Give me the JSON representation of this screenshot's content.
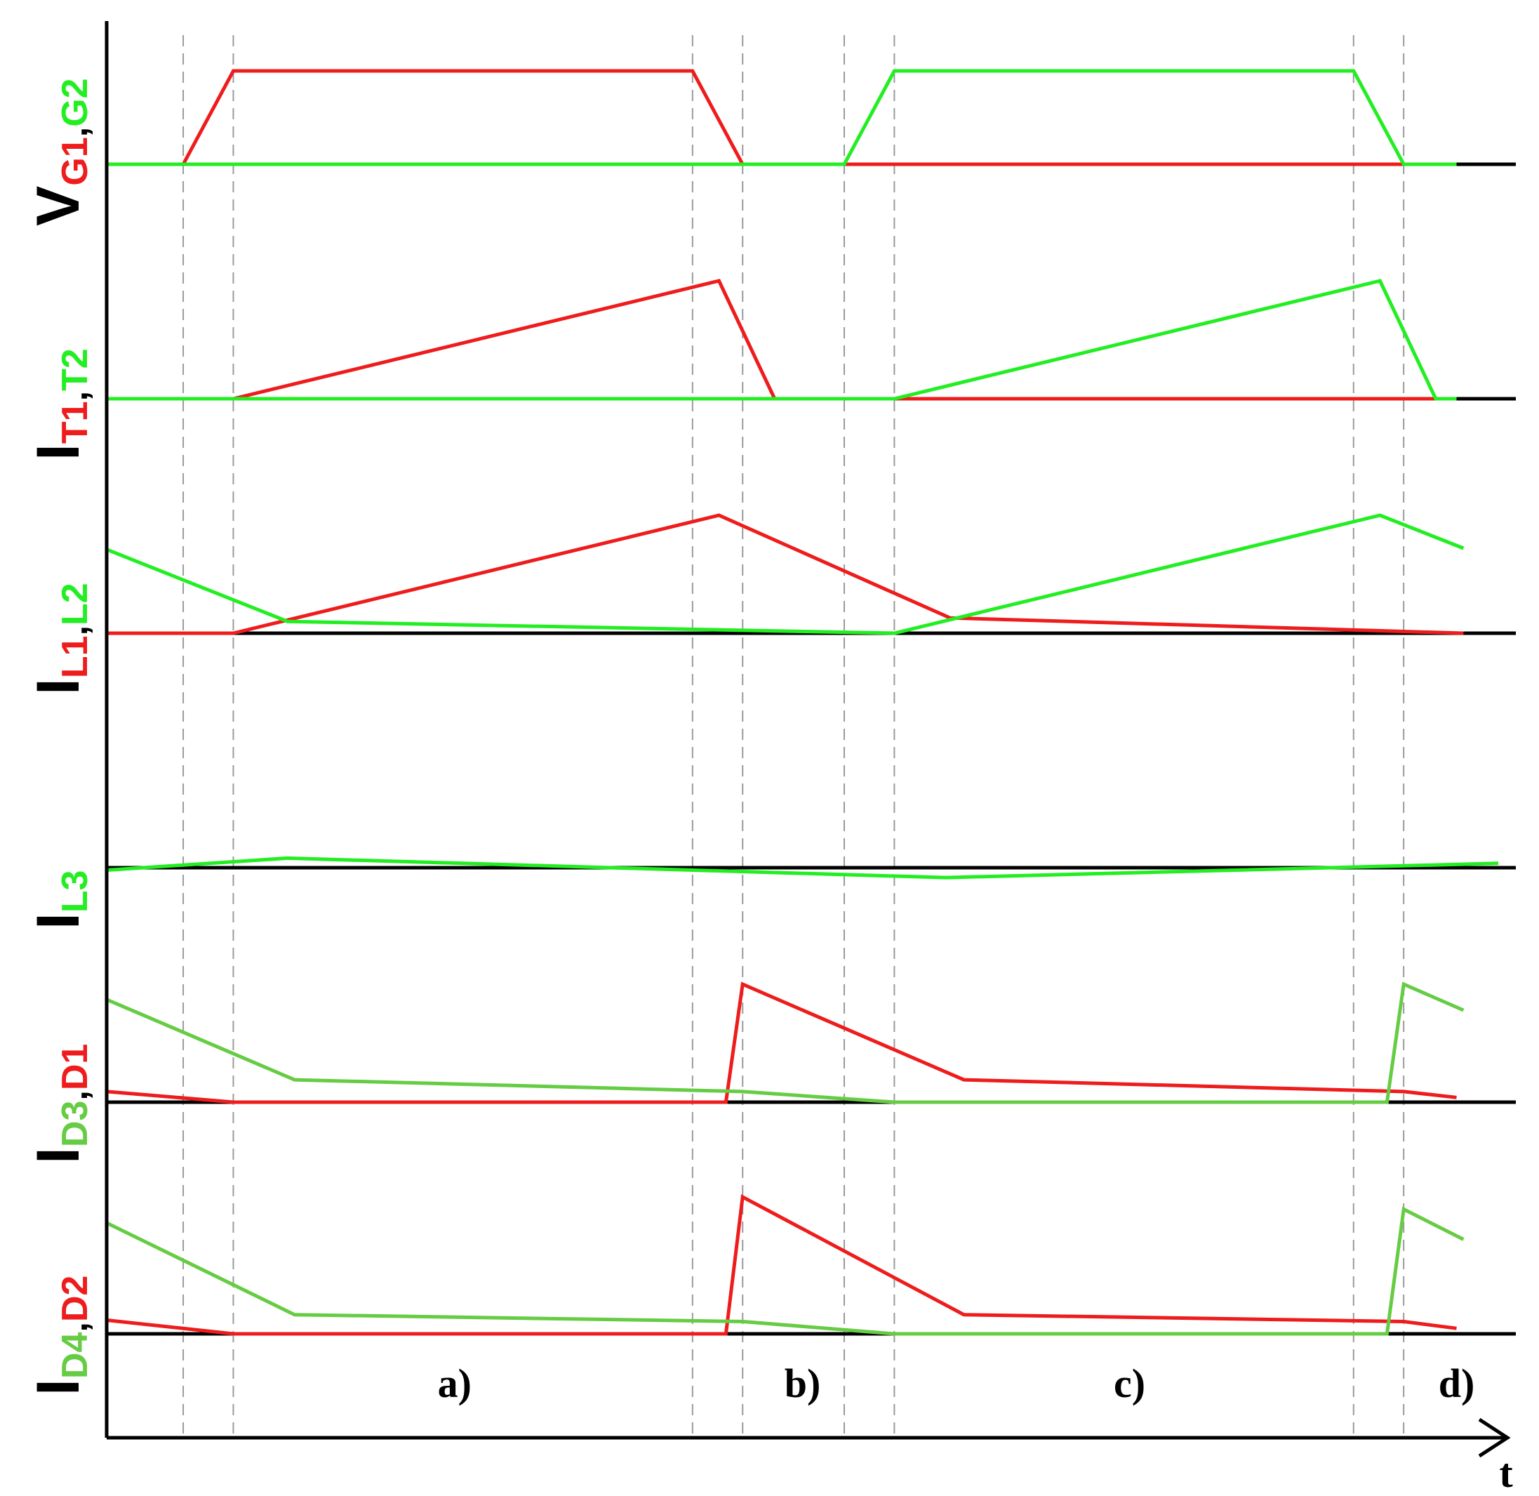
{
  "chart_data": {
    "type": "line",
    "x_unit": "t",
    "x_axis_label": "t",
    "xlim": [
      0,
      100
    ],
    "grid": false,
    "legend": "none",
    "phase_boundaries": [
      5.5,
      9.1,
      42.1,
      45.7,
      53.0,
      56.6,
      89.6,
      93.2
    ],
    "phases": [
      {
        "label": "a)",
        "x": 25.0
      },
      {
        "label": "b)",
        "x": 50.0
      },
      {
        "label": "c)",
        "x": 73.5
      },
      {
        "label": "d)",
        "x": 97.0
      }
    ],
    "colors": {
      "red": "#ee1c1c",
      "bright_green": "#22ee22",
      "diode_green": "#66cc44",
      "axis": "#000000",
      "guide": "#9a9a9a"
    },
    "rows": [
      {
        "id": "vg",
        "label_main": "V",
        "label_parts": [
          {
            "text": "G1",
            "color": "#ee1c1c"
          },
          {
            "text": ",",
            "color": "#000000"
          },
          {
            "text": "G2",
            "color": "#22ee22"
          }
        ],
        "series": [
          {
            "color": "#ee1c1c",
            "points": [
              [
                0,
                0
              ],
              [
                5.5,
                0
              ],
              [
                9.1,
                1
              ],
              [
                42.1,
                1
              ],
              [
                45.7,
                0
              ],
              [
                97.0,
                0
              ]
            ]
          },
          {
            "color": "#22ee22",
            "points": [
              [
                0,
                0
              ],
              [
                53.0,
                0
              ],
              [
                56.6,
                1
              ],
              [
                89.6,
                1
              ],
              [
                93.2,
                0
              ],
              [
                97.0,
                0
              ]
            ]
          }
        ]
      },
      {
        "id": "it",
        "label_main": "I",
        "label_parts": [
          {
            "text": "T1",
            "color": "#ee1c1c"
          },
          {
            "text": ",",
            "color": "#000000"
          },
          {
            "text": "T2",
            "color": "#22ee22"
          }
        ],
        "series": [
          {
            "color": "#ee1c1c",
            "points": [
              [
                0,
                0
              ],
              [
                9.1,
                0
              ],
              [
                44.0,
                1
              ],
              [
                48.0,
                0
              ],
              [
                95.5,
                0
              ]
            ]
          },
          {
            "color": "#22ee22",
            "points": [
              [
                0,
                0
              ],
              [
                56.6,
                0
              ],
              [
                91.5,
                1
              ],
              [
                95.5,
                0
              ],
              [
                97.0,
                0
              ]
            ]
          }
        ]
      },
      {
        "id": "il",
        "label_main": "I",
        "label_parts": [
          {
            "text": "L1",
            "color": "#ee1c1c"
          },
          {
            "text": ",",
            "color": "#000000"
          },
          {
            "text": "L2",
            "color": "#22ee22"
          }
        ],
        "series": [
          {
            "color": "#ee1c1c",
            "points": [
              [
                0,
                0
              ],
              [
                9.1,
                0
              ],
              [
                44.0,
                1
              ],
              [
                60.6,
                0.13
              ],
              [
                97.5,
                0
              ]
            ]
          },
          {
            "color": "#22ee22",
            "points": [
              [
                0,
                0.71
              ],
              [
                13.0,
                0.1
              ],
              [
                56.6,
                0
              ],
              [
                91.5,
                1
              ],
              [
                97.5,
                0.72
              ]
            ]
          }
        ]
      },
      {
        "id": "il3",
        "label_main": "I",
        "label_parts": [
          {
            "text": "L3",
            "color": "#22ee22"
          }
        ],
        "series": [
          {
            "color": "#22ee22",
            "points": [
              [
                0,
                -0.08
              ],
              [
                13.0,
                0.31
              ],
              [
                60.3,
                -0.32
              ],
              [
                100,
                0.14
              ]
            ]
          }
        ]
      },
      {
        "id": "id31",
        "label_main": "I",
        "label_parts": [
          {
            "text": "D3",
            "color": "#66cc44"
          },
          {
            "text": ",",
            "color": "#000000"
          },
          {
            "text": "D1",
            "color": "#ee1c1c"
          }
        ],
        "series": [
          {
            "color": "#ee1c1c",
            "points": [
              [
                0,
                0.09
              ],
              [
                9.1,
                0
              ],
              [
                44.5,
                0
              ],
              [
                45.7,
                1
              ],
              [
                61.6,
                0.19
              ],
              [
                93.2,
                0.09
              ],
              [
                97.0,
                0.04
              ]
            ]
          },
          {
            "color": "#66cc44",
            "points": [
              [
                0,
                0.87
              ],
              [
                13.5,
                0.19
              ],
              [
                45.7,
                0.09
              ],
              [
                56.6,
                0
              ],
              [
                92.0,
                0
              ],
              [
                93.2,
                1
              ],
              [
                97.5,
                0.78
              ]
            ]
          }
        ]
      },
      {
        "id": "id42",
        "label_main": "I",
        "label_parts": [
          {
            "text": "D4",
            "color": "#66cc44"
          },
          {
            "text": ",",
            "color": "#000000"
          },
          {
            "text": "D2",
            "color": "#ee1c1c"
          }
        ],
        "series": [
          {
            "color": "#ee1c1c",
            "points": [
              [
                0,
                0.1
              ],
              [
                9.1,
                0
              ],
              [
                44.5,
                0
              ],
              [
                45.7,
                1
              ],
              [
                61.6,
                0.14
              ],
              [
                93.2,
                0.09
              ],
              [
                97.0,
                0.04
              ]
            ]
          },
          {
            "color": "#66cc44",
            "points": [
              [
                0,
                0.81
              ],
              [
                13.5,
                0.14
              ],
              [
                45.7,
                0.09
              ],
              [
                56.6,
                0
              ],
              [
                92.0,
                0
              ],
              [
                93.2,
                0.91
              ],
              [
                97.5,
                0.69
              ]
            ]
          }
        ]
      }
    ]
  }
}
